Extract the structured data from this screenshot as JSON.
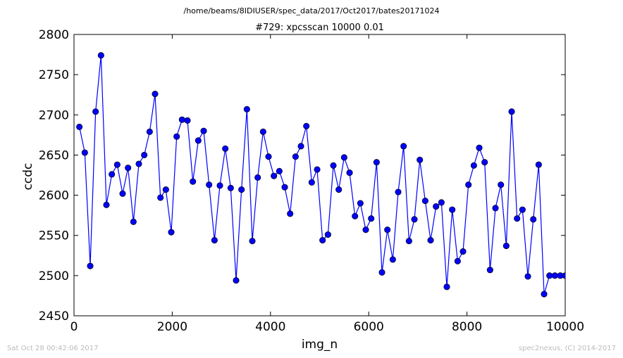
{
  "figure": {
    "suptitle": "/home/beams/8IDIUSER/spec_data/2017/Oct2017/bates20171024",
    "footer_left": "Sat Oct 28 00:42:06 2017",
    "footer_right": "spec2nexus, (C) 2014-2017"
  },
  "chart_data": {
    "type": "line",
    "title": "#729: xpcsscan 10000 0.01",
    "xlabel": "img_n",
    "ylabel": "ccdc",
    "xlim": [
      0,
      10000
    ],
    "ylim": [
      2450,
      2800
    ],
    "xticks": [
      0,
      2000,
      4000,
      6000,
      8000,
      10000
    ],
    "yticks": [
      2450,
      2500,
      2550,
      2600,
      2650,
      2700,
      2750,
      2800
    ],
    "grid": false,
    "marker": "circle",
    "colors": {
      "line": "#0000ff",
      "marker_fill": "#0000ff",
      "marker_edge": "#000000"
    },
    "series": [
      {
        "x": [
          110,
          220,
          330,
          440,
          550,
          660,
          770,
          880,
          990,
          1100,
          1210,
          1320,
          1430,
          1540,
          1650,
          1760,
          1870,
          1980,
          2090,
          2200,
          2310,
          2420,
          2530,
          2640,
          2750,
          2860,
          2970,
          3080,
          3190,
          3300,
          3410,
          3520,
          3630,
          3740,
          3850,
          3960,
          4070,
          4180,
          4290,
          4400,
          4510,
          4620,
          4730,
          4840,
          4950,
          5060,
          5170,
          5280,
          5390,
          5500,
          5610,
          5720,
          5830,
          5940,
          6050,
          6160,
          6270,
          6380,
          6490,
          6600,
          6710,
          6820,
          6930,
          7040,
          7150,
          7260,
          7370,
          7480,
          7590,
          7700,
          7810,
          7920,
          8030,
          8140,
          8250,
          8360,
          8470,
          8580,
          8690,
          8800,
          8910,
          9020,
          9130,
          9240,
          9350,
          9460,
          9570,
          9680,
          9790,
          9900,
          10000
        ],
        "y": [
          2685,
          2653,
          2512,
          2704,
          2774,
          2588,
          2626,
          2638,
          2602,
          2634,
          2567,
          2639,
          2650,
          2679,
          2726,
          2597,
          2607,
          2554,
          2673,
          2694,
          2693,
          2617,
          2668,
          2680,
          2613,
          2544,
          2612,
          2658,
          2609,
          2494,
          2607,
          2707,
          2543,
          2622,
          2679,
          2648,
          2624,
          2630,
          2610,
          2577,
          2648,
          2661,
          2686,
          2616,
          2632,
          2544,
          2551,
          2637,
          2607,
          2647,
          2628,
          2574,
          2590,
          2557,
          2571,
          2641,
          2504,
          2557,
          2520,
          2604,
          2661,
          2543,
          2570,
          2644,
          2593,
          2544,
          2586,
          2591,
          2486,
          2582,
          2518,
          2530,
          2613,
          2637,
          2659,
          2641,
          2507,
          2584,
          2613,
          2537,
          2704,
          2571,
          2582,
          2499,
          2570,
          2638,
          2477,
          2500,
          2500,
          2500,
          2500
        ]
      }
    ]
  }
}
